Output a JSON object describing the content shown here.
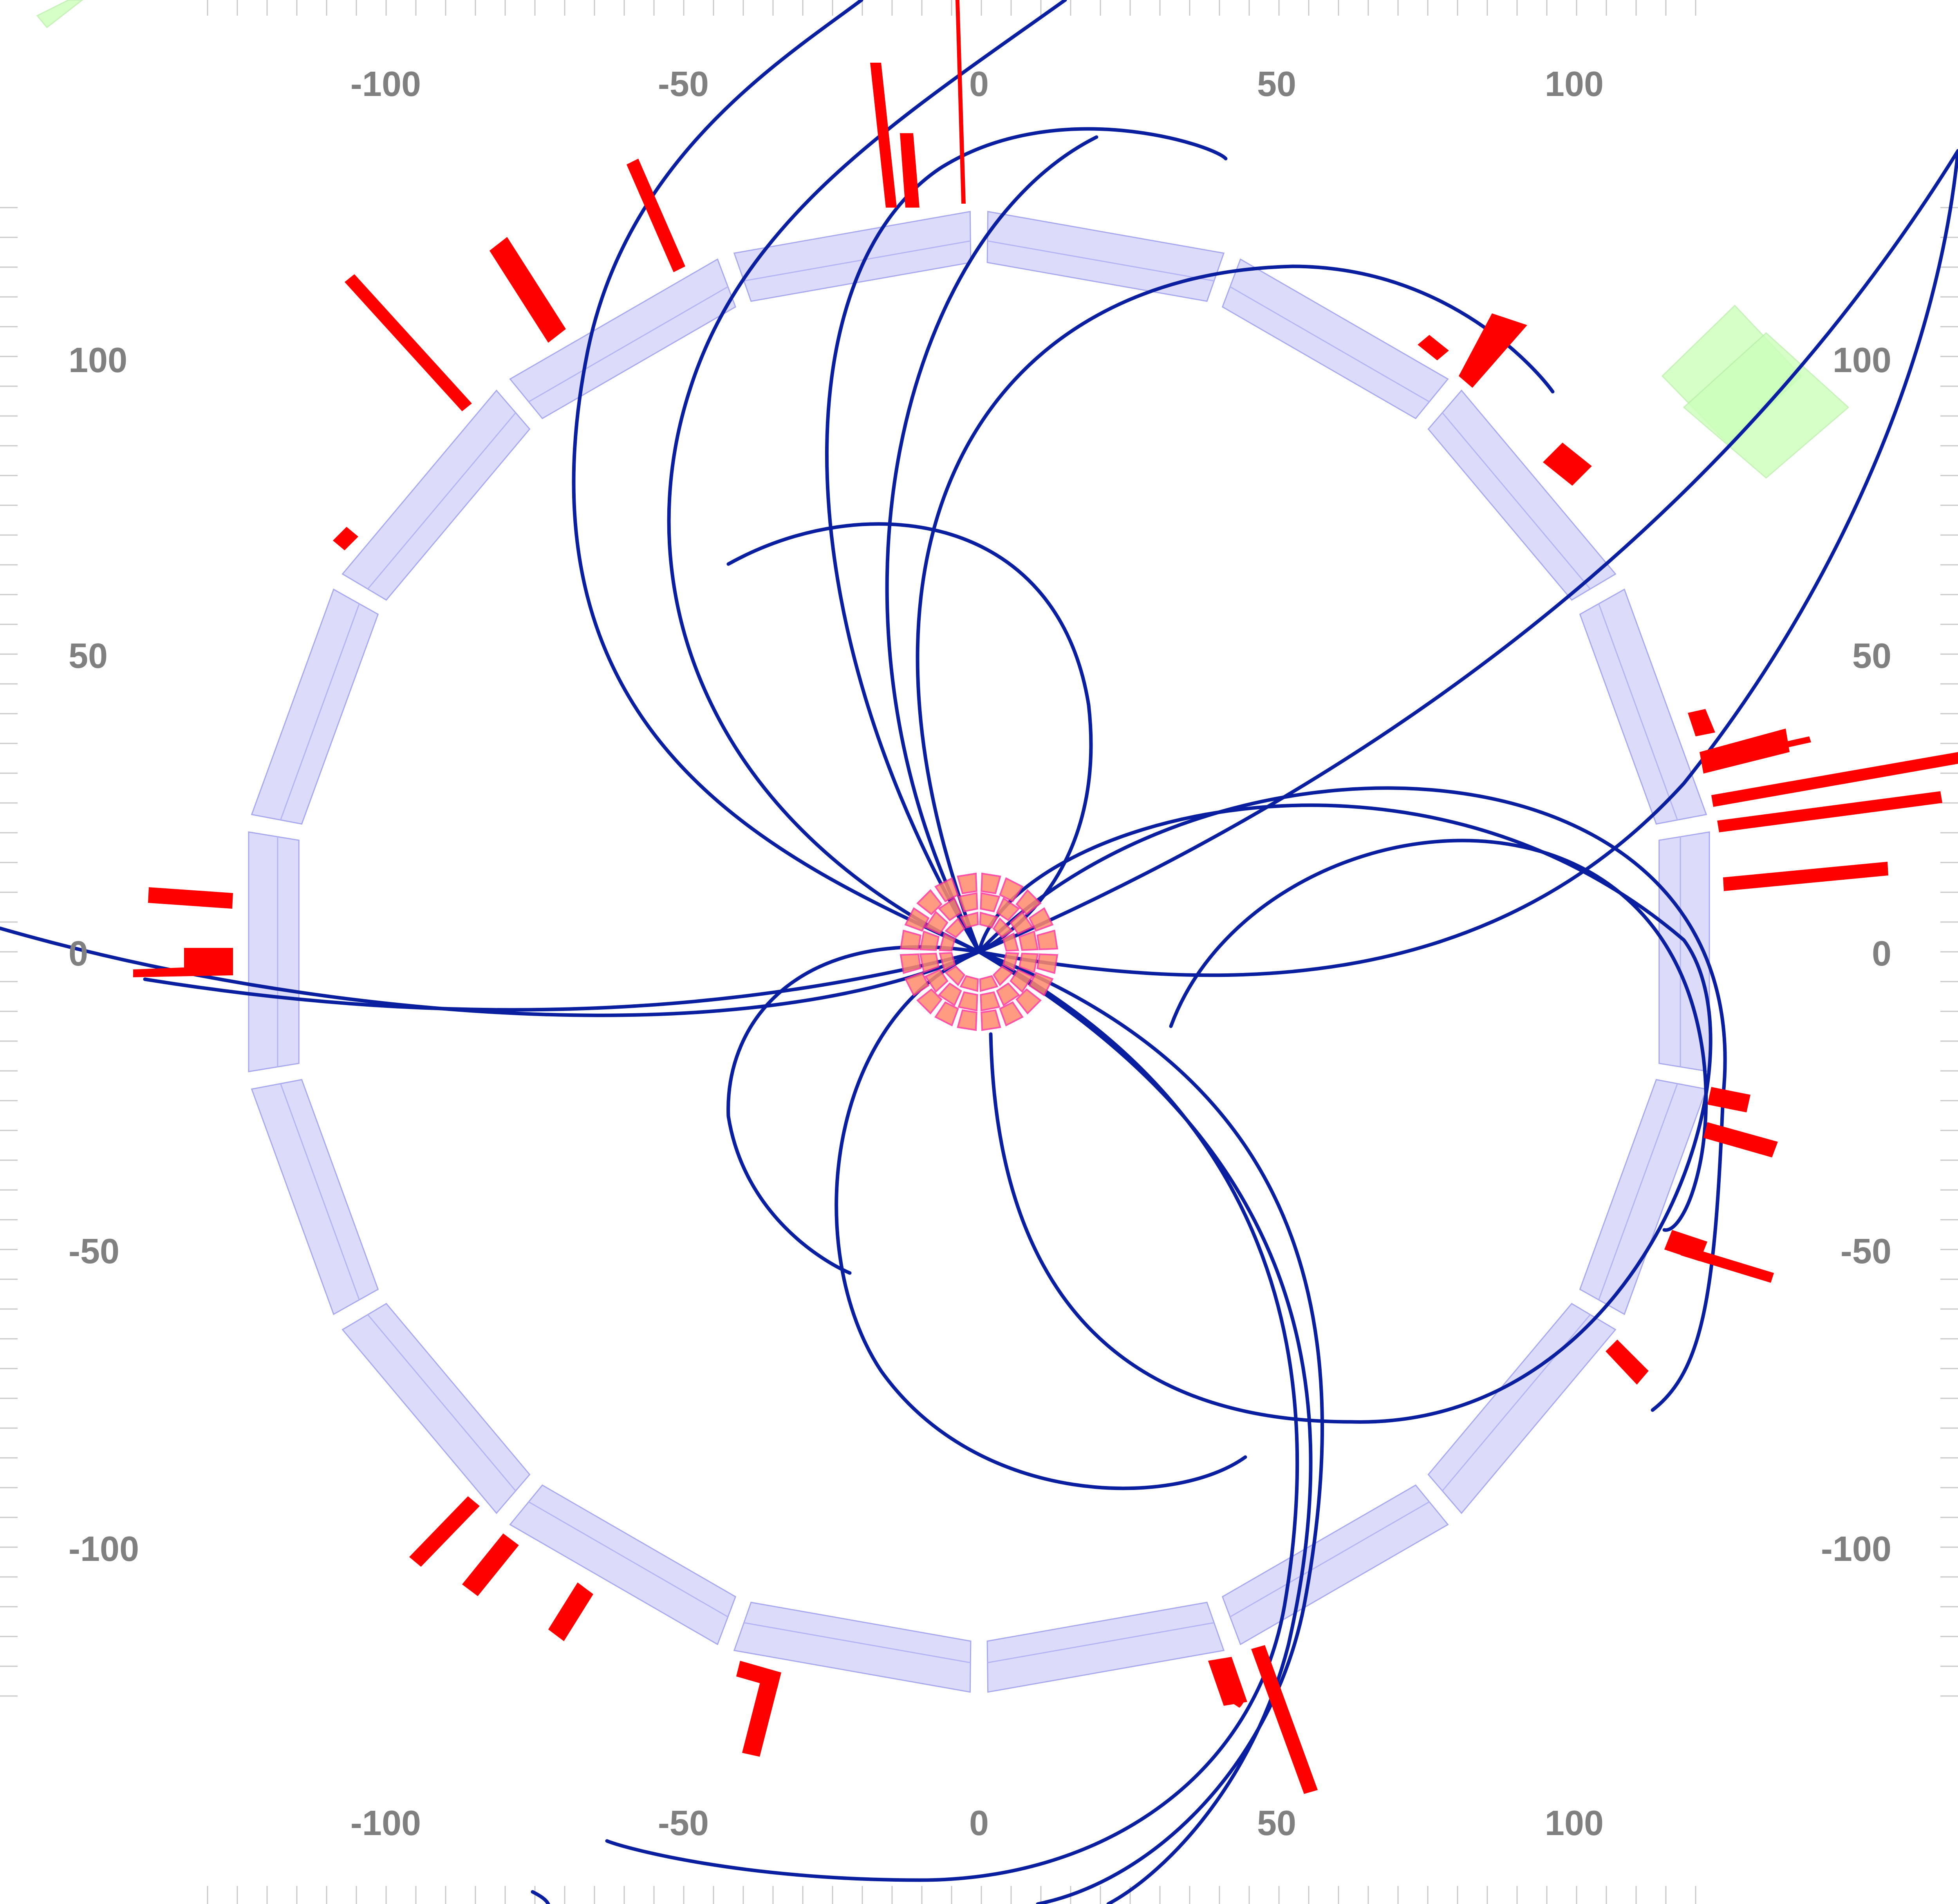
{
  "chart_data": {
    "type": "event-display",
    "x_ticks": [
      "-100",
      "-50",
      "0",
      "50",
      "100"
    ],
    "y_ticks": [
      "100",
      "50",
      "0",
      "-50",
      "-100"
    ],
    "xlim": [
      -165,
      165
    ],
    "ylim": [
      -160,
      160
    ],
    "colors": {
      "track": "#0a1fa0",
      "hit": "#ff0000",
      "calorimeter": "#dcdcfa",
      "vertex_detector": "#ff8a6a",
      "muon_chamber": "#ccffbb",
      "axis_text": "#808080"
    }
  }
}
